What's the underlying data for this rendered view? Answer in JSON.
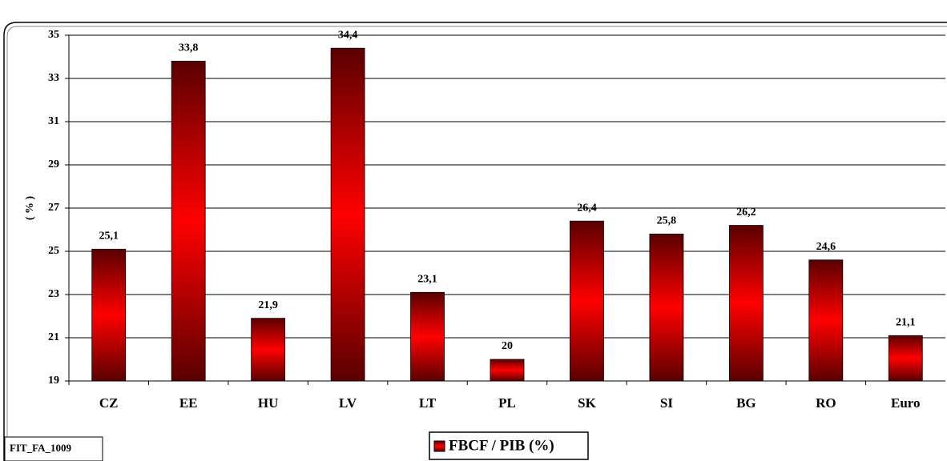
{
  "chart_data": {
    "type": "bar",
    "y_label": "( % )",
    "categories": [
      "CZ",
      "EE",
      "HU",
      "LV",
      "LT",
      "PL",
      "SK",
      "SI",
      "BG",
      "RO",
      "Euro"
    ],
    "series": [
      {
        "name": "FBCF / PIB (%)",
        "color": "#ff0000",
        "values": [
          25.1,
          33.8,
          21.9,
          34.4,
          23.1,
          20,
          26.4,
          25.8,
          26.2,
          24.6,
          21.1
        ],
        "value_labels": [
          "25,1",
          "33,8",
          "21,9",
          "34,4",
          "23,1",
          "20",
          "26,4",
          "25,8",
          "26,2",
          "24,6",
          "21,1"
        ]
      }
    ],
    "ylim": [
      19,
      35
    ],
    "yticks": [
      19,
      21,
      23,
      25,
      27,
      29,
      31,
      33,
      35
    ],
    "grid": true,
    "legend": "bottom",
    "footnote": "FIT_FA_1009"
  }
}
